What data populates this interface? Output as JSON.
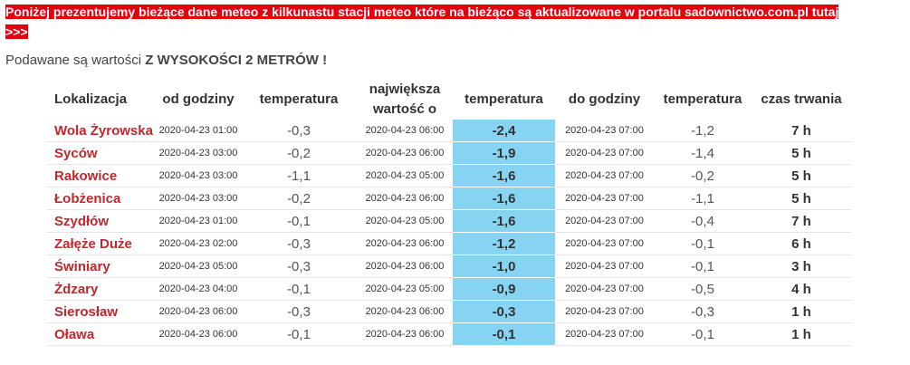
{
  "banner": {
    "line1": "Poniżej prezentujemy bieżące dane meteo z kilkunastu stacji meteo które na bieżąco są aktualizowane w portalu sadownictwo.com.pl tutaj",
    "line2": ">>>"
  },
  "note": {
    "text": "Podawane są wartości ",
    "bold": "Z WYSOKOŚCI 2 METRÓW !"
  },
  "table": {
    "headers": [
      "Lokalizacja",
      "od godziny",
      "temperatura",
      "największa wartość o",
      "temperatura",
      "do godziny",
      "temperatura",
      "czas trwania"
    ],
    "rows": [
      [
        "Wola Żyrowska",
        "2020-04-23 01:00",
        "-0,3",
        "2020-04-23 06:00",
        "-2,4",
        "2020-04-23 07:00",
        "-1,2",
        "7 h"
      ],
      [
        "Syców",
        "2020-04-23 03:00",
        "-0,2",
        "2020-04-23 06:00",
        "-1,9",
        "2020-04-23 07:00",
        "-1,4",
        "5 h"
      ],
      [
        "Rakowice",
        "2020-04-23 03:00",
        "-1,1",
        "2020-04-23 05:00",
        "-1,6",
        "2020-04-23 07:00",
        "-0,2",
        "5 h"
      ],
      [
        "Łobżenica",
        "2020-04-23 03:00",
        "-0,2",
        "2020-04-23 06:00",
        "-1,6",
        "2020-04-23 07:00",
        "-1,1",
        "5 h"
      ],
      [
        "Szydłów",
        "2020-04-23 01:00",
        "-0,1",
        "2020-04-23 05:00",
        "-1,6",
        "2020-04-23 07:00",
        "-0,4",
        "7 h"
      ],
      [
        "Załęże Duże",
        "2020-04-23 02:00",
        "-0,3",
        "2020-04-23 06:00",
        "-1,2",
        "2020-04-23 07:00",
        "-0,1",
        "6 h"
      ],
      [
        "Świniary",
        "2020-04-23 05:00",
        "-0,3",
        "2020-04-23 06:00",
        "-1,0",
        "2020-04-23 07:00",
        "-0,1",
        "3 h"
      ],
      [
        "Żdzary",
        "2020-04-23 04:00",
        "-0,1",
        "2020-04-23 05:00",
        "-0,9",
        "2020-04-23 07:00",
        "-0,5",
        "4 h"
      ],
      [
        "Sierosław",
        "2020-04-23 06:00",
        "-0,3",
        "2020-04-23 06:00",
        "-0,3",
        "2020-04-23 07:00",
        "-0,3",
        "1 h"
      ],
      [
        "Oława",
        "2020-04-23 06:00",
        "-0,1",
        "2020-04-23 06:00",
        "-0,1",
        "2020-04-23 07:00",
        "-0,1",
        "1 h"
      ]
    ]
  }
}
